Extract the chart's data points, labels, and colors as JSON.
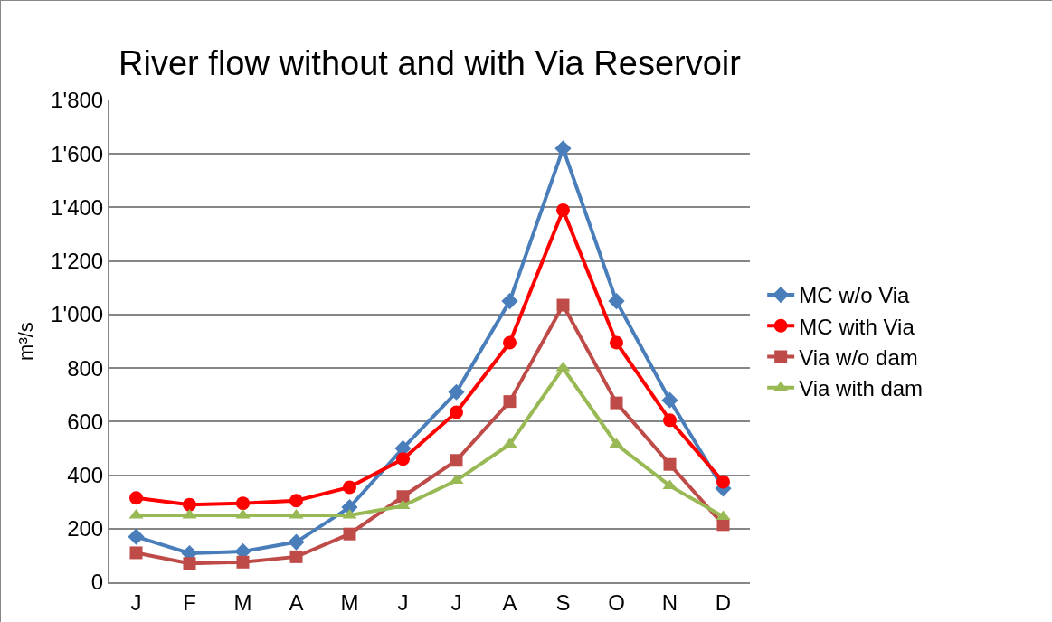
{
  "chart_data": {
    "type": "line",
    "title": "River flow without and with Via Reservoir",
    "ylabel": "m³/s",
    "categories": [
      "J",
      "F",
      "M",
      "A",
      "M",
      "J",
      "J",
      "A",
      "S",
      "O",
      "N",
      "D"
    ],
    "series": [
      {
        "name": "MC w/o Via",
        "color": "#4a7ebb",
        "marker": "diamond",
        "values": [
          170,
          108,
          115,
          150,
          280,
          500,
          710,
          1050,
          1620,
          1050,
          680,
          350
        ]
      },
      {
        "name": "MC with Via",
        "color": "#ff0000",
        "marker": "circle",
        "values": [
          315,
          290,
          295,
          305,
          355,
          460,
          635,
          895,
          1390,
          895,
          605,
          375
        ]
      },
      {
        "name": "Via w/o dam",
        "color": "#be4b48",
        "marker": "square",
        "values": [
          110,
          70,
          75,
          95,
          180,
          320,
          455,
          675,
          1035,
          670,
          440,
          215
        ]
      },
      {
        "name": "Via with dam",
        "color": "#98b954",
        "marker": "triangle",
        "values": [
          250,
          250,
          250,
          250,
          250,
          285,
          380,
          515,
          800,
          515,
          360,
          245
        ]
      }
    ],
    "ylim": [
      0,
      1800
    ],
    "yticks": [
      0,
      200,
      400,
      600,
      800,
      {
        "value": 1000,
        "label": "1'000"
      },
      {
        "value": 1200,
        "label": "1'200"
      },
      {
        "value": 1400,
        "label": "1'400"
      },
      {
        "value": 1600,
        "label": "1'600"
      },
      {
        "value": 1800,
        "label": "1'800"
      }
    ],
    "grid": "y",
    "legend": "right"
  }
}
